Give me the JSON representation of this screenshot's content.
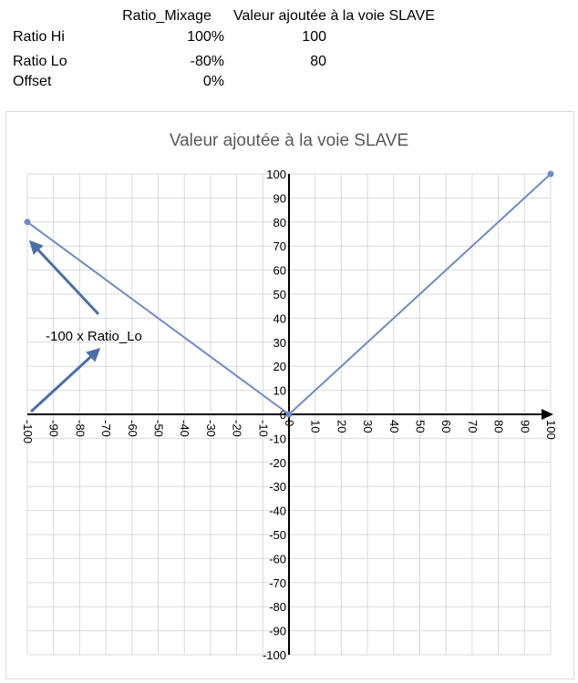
{
  "table": {
    "header_ratio": "Ratio_Mixage",
    "header_valeur": "Valeur ajoutée à la voie SLAVE",
    "rows": [
      {
        "label": "Ratio Hi",
        "ratio": "100%",
        "valeur": "100"
      },
      {
        "label": "Ratio Lo",
        "ratio": "-80%",
        "valeur": "80"
      },
      {
        "label": "Offset",
        "ratio": "0%",
        "valeur": ""
      }
    ]
  },
  "colors": {
    "series": "#6b8cc8",
    "grid": "#d9d9d9",
    "axis": "#000000",
    "arrow": "#4a6fa5"
  },
  "chart_data": {
    "type": "line",
    "title": "Valeur ajoutée à la voie SLAVE",
    "xlim": [
      -100,
      100
    ],
    "ylim": [
      -100,
      100
    ],
    "x_ticks": [
      -100,
      -90,
      -80,
      -70,
      -60,
      -50,
      -40,
      -30,
      -20,
      -10,
      0,
      10,
      20,
      30,
      40,
      50,
      60,
      70,
      80,
      90,
      100
    ],
    "y_ticks": [
      -100,
      -90,
      -80,
      -70,
      -60,
      -50,
      -40,
      -30,
      -20,
      -10,
      0,
      10,
      20,
      30,
      40,
      50,
      60,
      70,
      80,
      90,
      100
    ],
    "grid": true,
    "series": [
      {
        "x": [
          -100,
          0,
          100
        ],
        "y": [
          80,
          0,
          100
        ]
      }
    ],
    "annotations": [
      {
        "text": "-100 x Ratio_Lo"
      }
    ]
  }
}
